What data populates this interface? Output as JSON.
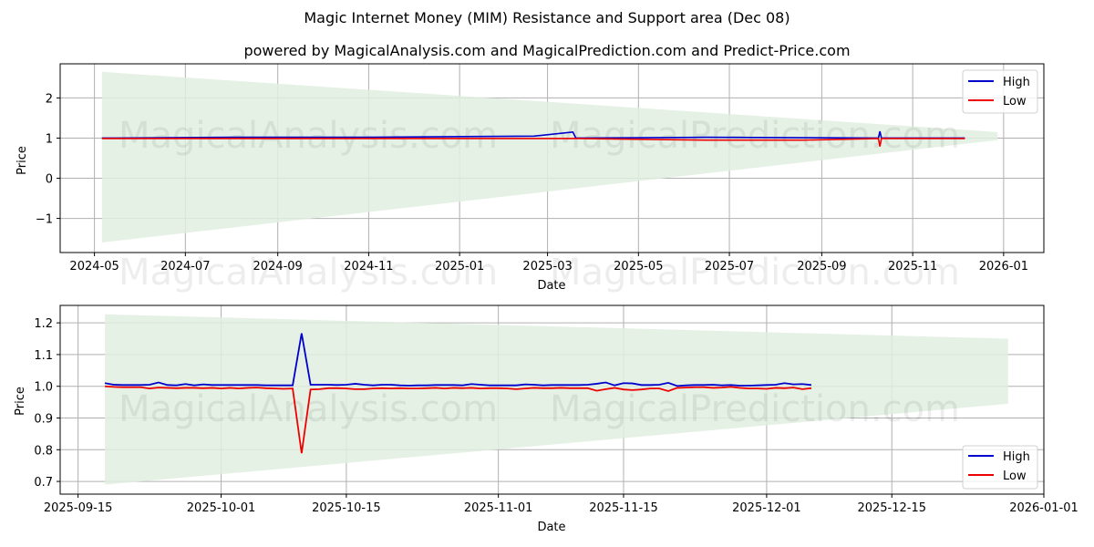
{
  "header": {
    "title": "Magic Internet Money (MIM) Resistance and Support area (Dec 08)",
    "subtitle": "powered by MagicalAnalysis.com and MagicalPrediction.com and Predict-Price.com"
  },
  "watermarks": [
    "MagicalAnalysis.com",
    "MagicalPrediction.com"
  ],
  "colors": {
    "high": "#0000cc",
    "low": "#ee0000",
    "band": "#e0efe0",
    "grid": "#b0b0b0"
  },
  "chart_data": [
    {
      "type": "line",
      "title": "",
      "xlabel": "Date",
      "ylabel": "Price",
      "ylim": [
        -1.85,
        2.85
      ],
      "xlim": [
        "2024-04-08",
        "2026-01-28"
      ],
      "grid": true,
      "legend_position": "upper right",
      "x_ticks": [
        "2024-05",
        "2024-07",
        "2024-09",
        "2024-11",
        "2025-01",
        "2025-03",
        "2025-05",
        "2025-07",
        "2025-09",
        "2025-11",
        "2026-01"
      ],
      "y_ticks": [
        "−1",
        "0",
        "1",
        "2"
      ],
      "band": {
        "name": "Resistance/Support area",
        "start": "2024-05-06",
        "end": "2025-12-28",
        "upper_start": 2.65,
        "upper_end": 1.15,
        "lower_start": -1.6,
        "lower_end": 0.95
      },
      "series": [
        {
          "name": "High",
          "x": [
            "2024-05-06",
            "2024-08-01",
            "2024-11-01",
            "2025-02-20",
            "2025-03-18",
            "2025-03-20",
            "2025-06-15",
            "2025-08-20",
            "2025-10-09",
            "2025-10-10",
            "2025-10-11",
            "2025-12-06"
          ],
          "values": [
            1.0,
            1.02,
            1.02,
            1.05,
            1.15,
            1.0,
            1.02,
            1.01,
            1.0,
            1.17,
            1.0,
            1.0
          ]
        },
        {
          "name": "Low",
          "x": [
            "2024-05-06",
            "2024-08-01",
            "2024-11-01",
            "2025-02-20",
            "2025-03-18",
            "2025-03-20",
            "2025-06-15",
            "2025-08-20",
            "2025-10-09",
            "2025-10-10",
            "2025-10-11",
            "2025-12-06"
          ],
          "values": [
            0.99,
            0.99,
            0.99,
            0.99,
            0.99,
            0.99,
            0.95,
            0.95,
            0.99,
            0.79,
            0.99,
            0.99
          ]
        }
      ],
      "legend": [
        "High",
        "Low"
      ]
    },
    {
      "type": "line",
      "title": "",
      "xlabel": "Date",
      "ylabel": "Price",
      "ylim": [
        0.66,
        1.255
      ],
      "xlim": [
        "2025-09-13",
        "2026-01-01"
      ],
      "grid": true,
      "legend_position": "lower right",
      "x_ticks": [
        "2025-09-15",
        "2025-10-01",
        "2025-10-15",
        "2025-11-01",
        "2025-11-15",
        "2025-12-01",
        "2025-12-15",
        "2026-01-01"
      ],
      "y_ticks": [
        "0.7",
        "0.8",
        "0.9",
        "1.0",
        "1.1",
        "1.2"
      ],
      "band": {
        "name": "Resistance/Support area",
        "start": "2025-09-18",
        "end": "2025-12-28",
        "upper_start": 1.227,
        "upper_end": 1.15,
        "lower_start": 0.69,
        "lower_end": 0.945
      },
      "x_start": "2025-09-18",
      "series": [
        {
          "name": "High",
          "values": [
            1.01,
            1.005,
            1.004,
            1.004,
            1.004,
            1.005,
            1.012,
            1.004,
            1.003,
            1.007,
            1.003,
            1.006,
            1.004,
            1.004,
            1.004,
            1.004,
            1.004,
            1.004,
            1.003,
            1.003,
            1.003,
            1.003,
            1.167,
            1.005,
            1.005,
            1.005,
            1.004,
            1.005,
            1.008,
            1.005,
            1.003,
            1.005,
            1.005,
            1.003,
            1.002,
            1.003,
            1.003,
            1.004,
            1.004,
            1.004,
            1.003,
            1.007,
            1.005,
            1.003,
            1.003,
            1.003,
            1.003,
            1.006,
            1.005,
            1.003,
            1.004,
            1.004,
            1.004,
            1.004,
            1.005,
            1.008,
            1.012,
            1.003,
            1.01,
            1.009,
            1.004,
            1.004,
            1.005,
            1.011,
            1.001,
            1.003,
            1.004,
            1.004,
            1.005,
            1.003,
            1.004,
            1.002,
            1.002,
            1.003,
            1.004,
            1.005,
            1.01,
            1.006,
            1.007,
            1.004
          ]
        },
        {
          "name": "Low",
          "values": [
            1.0,
            0.998,
            0.997,
            0.997,
            0.997,
            0.993,
            0.996,
            0.995,
            0.994,
            0.995,
            0.995,
            0.994,
            0.995,
            0.993,
            0.995,
            0.993,
            0.995,
            0.996,
            0.994,
            0.993,
            0.992,
            0.993,
            0.789,
            0.99,
            0.991,
            0.994,
            0.994,
            0.993,
            0.991,
            0.991,
            0.993,
            0.994,
            0.993,
            0.994,
            0.993,
            0.993,
            0.994,
            0.995,
            0.993,
            0.995,
            0.994,
            0.995,
            0.993,
            0.994,
            0.994,
            0.993,
            0.991,
            0.993,
            0.995,
            0.994,
            0.994,
            0.995,
            0.994,
            0.994,
            0.994,
            0.986,
            0.991,
            0.995,
            0.99,
            0.988,
            0.99,
            0.993,
            0.993,
            0.985,
            0.995,
            0.996,
            0.997,
            0.997,
            0.995,
            0.996,
            0.998,
            0.995,
            0.993,
            0.993,
            0.992,
            0.995,
            0.994,
            0.996,
            0.991,
            0.994
          ]
        }
      ],
      "legend": [
        "High",
        "Low"
      ]
    }
  ]
}
